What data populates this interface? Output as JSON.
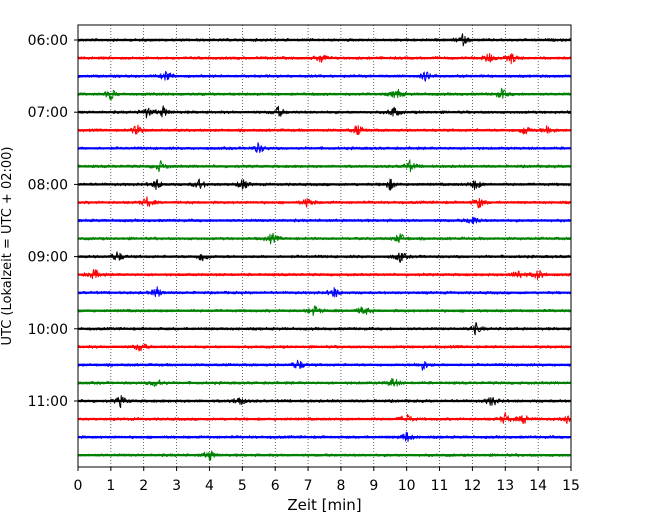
{
  "chart_data": {
    "type": "line",
    "chart_kind": "helicorder",
    "xlabel": "Zeit  [min]",
    "ylabel": "UTC (Lokalzeit = UTC + 02:00)",
    "xlim": [
      0,
      15
    ],
    "x_ticks": [
      0,
      1,
      2,
      3,
      4,
      5,
      6,
      7,
      8,
      9,
      10,
      11,
      12,
      13,
      14,
      15
    ],
    "x_grid": true,
    "x_grid_style": "dotted",
    "y_tick_labels": [
      "06:00",
      "07:00",
      "08:00",
      "09:00",
      "10:00",
      "11:00"
    ],
    "trace_interval_min": 15,
    "color_cycle": [
      "#000000",
      "#ff0000",
      "#0000ff",
      "#008000"
    ],
    "traces": [
      {
        "start": "06:00",
        "color": "#000000",
        "events_min": [
          11.7
        ]
      },
      {
        "start": "06:15",
        "color": "#ff0000",
        "events_min": [
          7.4,
          12.5,
          13.2
        ]
      },
      {
        "start": "06:30",
        "color": "#0000ff",
        "events_min": [
          2.7,
          10.6
        ]
      },
      {
        "start": "06:45",
        "color": "#008000",
        "events_min": [
          1.0,
          9.7,
          12.9
        ]
      },
      {
        "start": "07:00",
        "color": "#000000",
        "events_min": [
          2.1,
          2.6,
          6.1,
          9.6
        ]
      },
      {
        "start": "07:15",
        "color": "#ff0000",
        "events_min": [
          1.8,
          8.5,
          13.6,
          14.3
        ]
      },
      {
        "start": "07:30",
        "color": "#0000ff",
        "events_min": [
          5.5
        ]
      },
      {
        "start": "07:45",
        "color": "#008000",
        "events_min": [
          2.5,
          10.1
        ]
      },
      {
        "start": "08:00",
        "color": "#000000",
        "events_min": [
          2.4,
          3.7,
          5.0,
          9.5,
          12.1
        ]
      },
      {
        "start": "08:15",
        "color": "#ff0000",
        "events_min": [
          2.1,
          7.0,
          12.2
        ]
      },
      {
        "start": "08:30",
        "color": "#0000ff",
        "events_min": [
          12.0
        ]
      },
      {
        "start": "08:45",
        "color": "#008000",
        "events_min": [
          5.9,
          9.8
        ]
      },
      {
        "start": "09:00",
        "color": "#000000",
        "events_min": [
          1.2,
          3.8,
          9.8
        ]
      },
      {
        "start": "09:15",
        "color": "#ff0000",
        "events_min": [
          0.5,
          13.4,
          14.0
        ]
      },
      {
        "start": "09:30",
        "color": "#0000ff",
        "events_min": [
          2.4,
          7.8
        ]
      },
      {
        "start": "09:45",
        "color": "#008000",
        "events_min": [
          7.2,
          8.7
        ]
      },
      {
        "start": "10:00",
        "color": "#000000",
        "events_min": [
          12.1
        ]
      },
      {
        "start": "10:15",
        "color": "#ff0000",
        "events_min": [
          1.9
        ]
      },
      {
        "start": "10:30",
        "color": "#0000ff",
        "events_min": [
          6.7,
          10.5
        ]
      },
      {
        "start": "10:45",
        "color": "#008000",
        "events_min": [
          2.4,
          9.6
        ]
      },
      {
        "start": "11:00",
        "color": "#000000",
        "events_min": [
          1.3,
          4.9,
          12.6
        ]
      },
      {
        "start": "11:15",
        "color": "#ff0000",
        "events_min": [
          10.0,
          13.0,
          13.6,
          14.9
        ]
      },
      {
        "start": "11:30",
        "color": "#0000ff",
        "events_min": [
          10.0
        ]
      },
      {
        "start": "11:45",
        "color": "#008000",
        "events_min": [
          4.0
        ]
      }
    ]
  }
}
